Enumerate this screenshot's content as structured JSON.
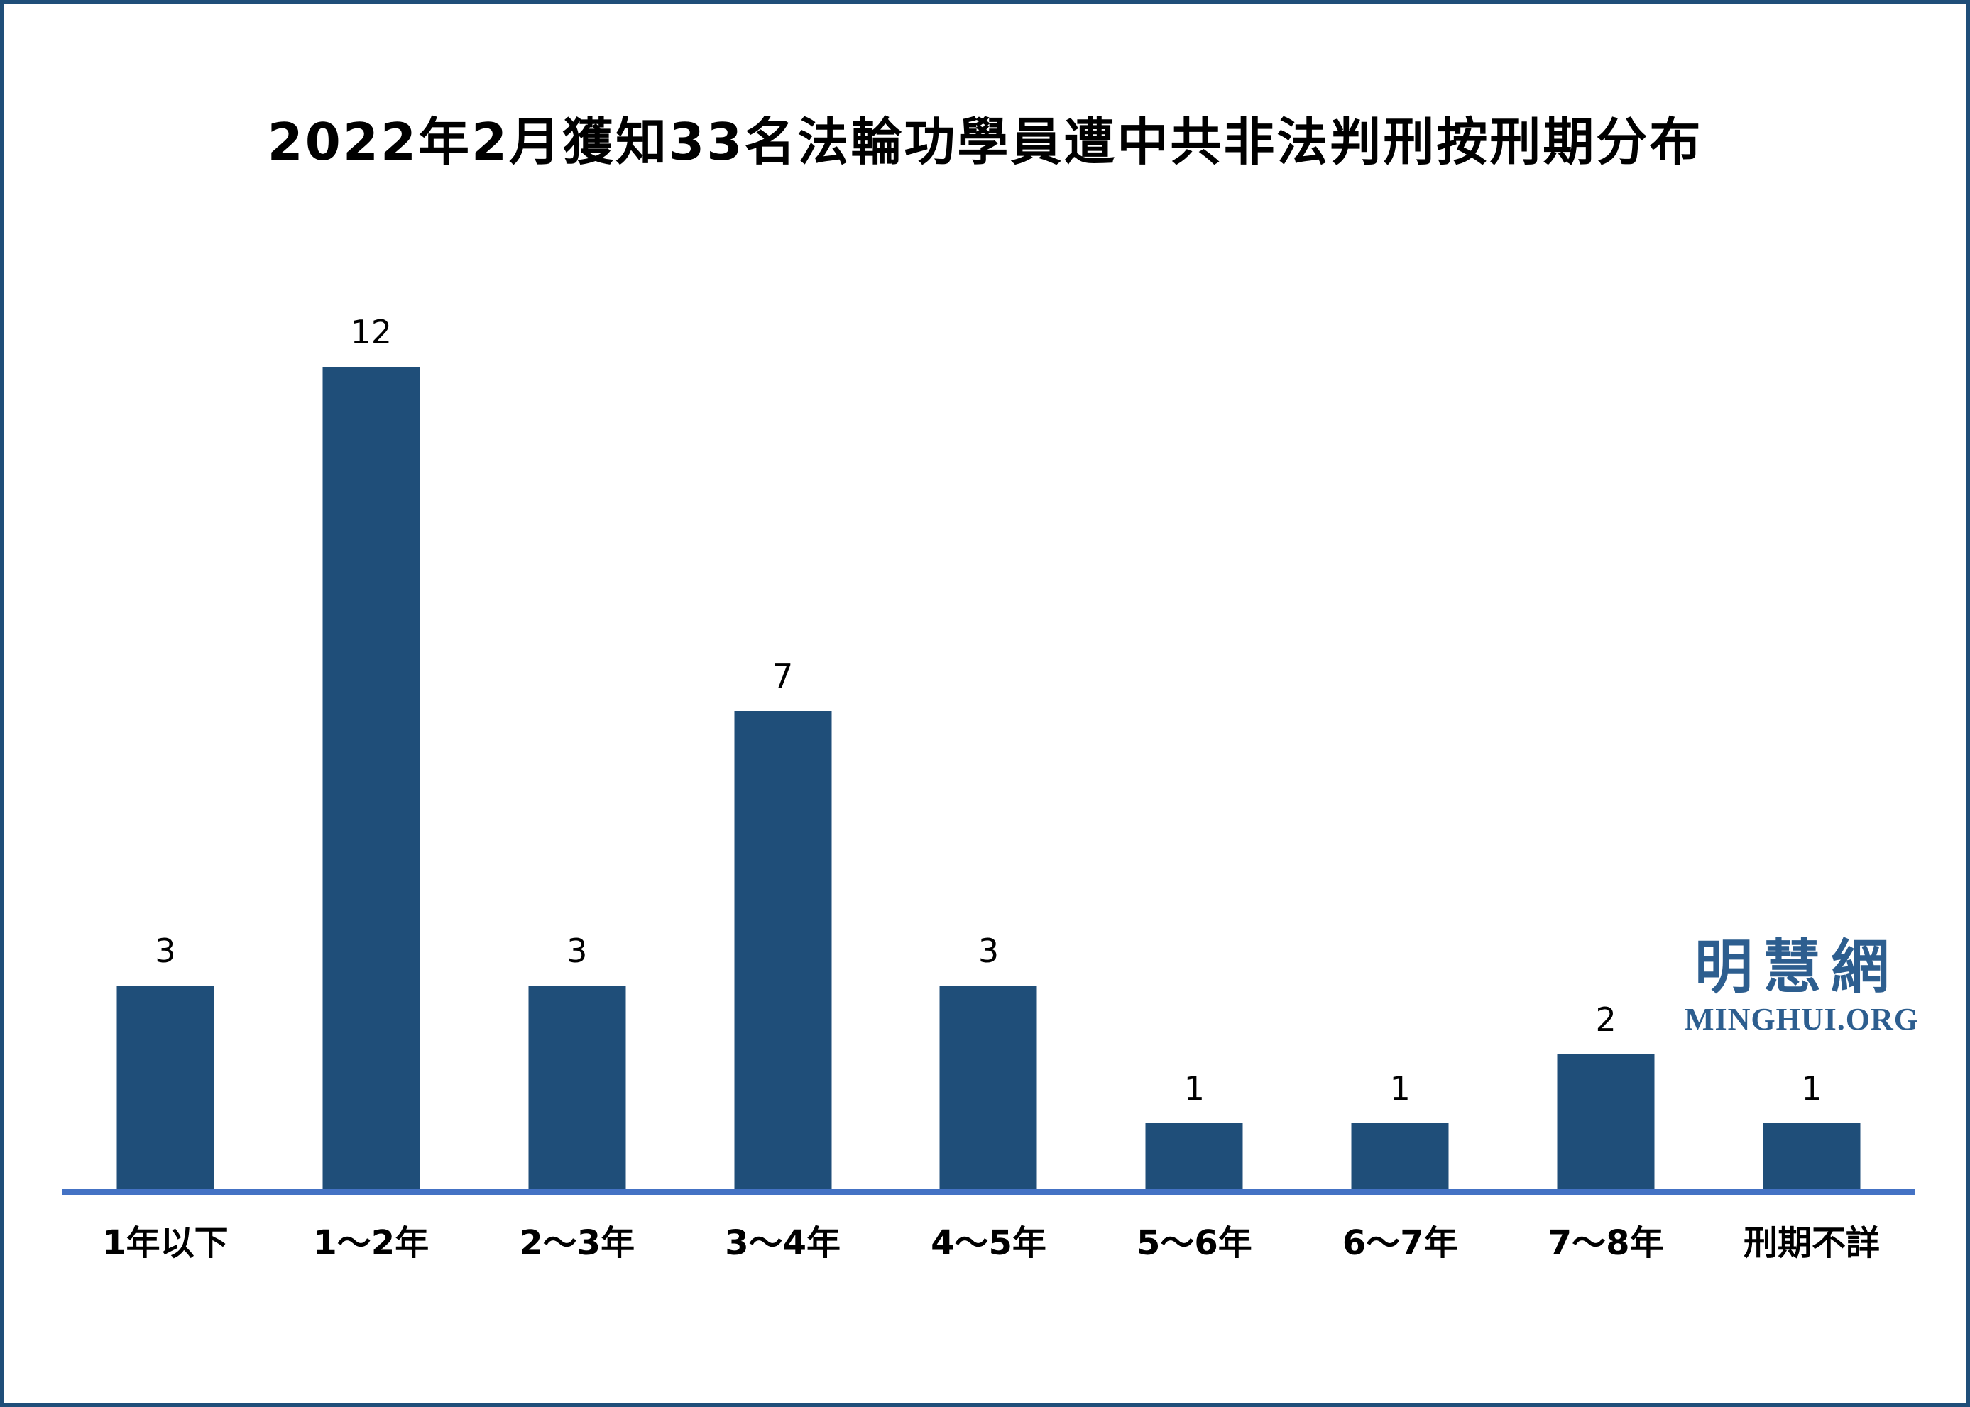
{
  "chart_data": {
    "type": "bar",
    "title": "2022年2月獲知33名法輪功學員遭中共非法判刑按刑期分布",
    "categories": [
      "1年以下",
      "1～2年",
      "2～3年",
      "3～4年",
      "4～5年",
      "5～6年",
      "6～7年",
      "7～8年",
      "刑期不詳"
    ],
    "values": [
      3,
      12,
      3,
      7,
      3,
      1,
      1,
      2,
      1
    ],
    "xlabel": "",
    "ylabel": "",
    "ylim": [
      0,
      13
    ],
    "grid": false,
    "legend": "none",
    "data_labels": true
  },
  "watermark": {
    "chinese": "明慧網",
    "url": "MINGHUI.ORG"
  },
  "colors": {
    "bar": "#1F4E79",
    "axis_line": "#4472C4",
    "frame_border": "#1F4E79",
    "watermark": "#2D5E8F",
    "text": "#000000",
    "background": "#FFFFFF"
  }
}
